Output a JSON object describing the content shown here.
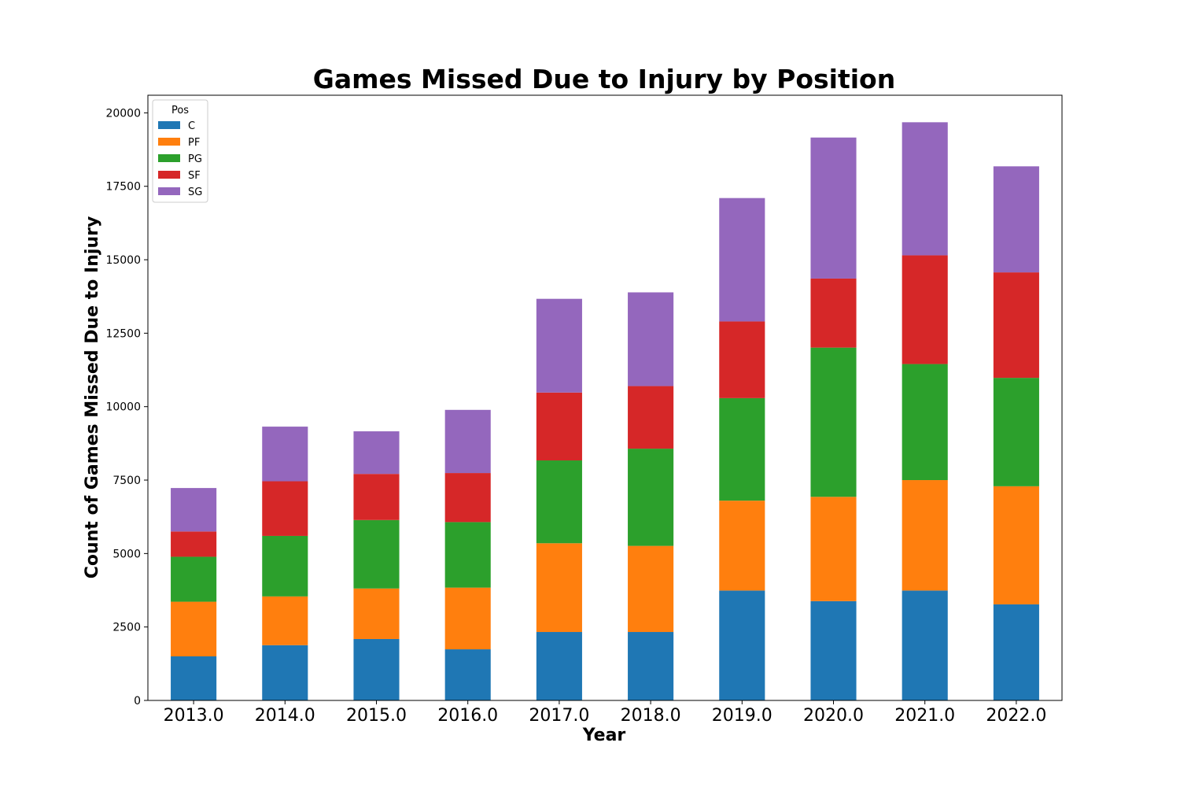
{
  "chart_data": {
    "type": "bar",
    "stacked": true,
    "title": "Games Missed Due to Injury by Position",
    "xlabel": "Year",
    "ylabel": "Count of Games Missed Due to Injury",
    "categories": [
      "2013.0",
      "2014.0",
      "2015.0",
      "2016.0",
      "2017.0",
      "2018.0",
      "2019.0",
      "2020.0",
      "2021.0",
      "2022.0"
    ],
    "ylim": [
      0,
      20600
    ],
    "yticks": [
      0,
      2500,
      5000,
      7500,
      10000,
      12500,
      15000,
      17500,
      20000
    ],
    "grid": false,
    "legend": {
      "title": "Pos",
      "placement": "top-left"
    },
    "series": [
      {
        "name": "C",
        "color": "#1f77b4",
        "values": [
          1500,
          1880,
          2090,
          1740,
          2330,
          2330,
          3740,
          3380,
          3740,
          3270
        ]
      },
      {
        "name": "PF",
        "color": "#ff7f0e",
        "values": [
          1860,
          1660,
          1720,
          2100,
          3020,
          2930,
          3060,
          3550,
          3760,
          4020
        ]
      },
      {
        "name": "PG",
        "color": "#2ca02c",
        "values": [
          1530,
          2060,
          2330,
          2230,
          2820,
          3310,
          3490,
          5080,
          3950,
          3690
        ]
      },
      {
        "name": "SF",
        "color": "#d62728",
        "values": [
          860,
          1860,
          1570,
          1670,
          2310,
          2130,
          2610,
          2350,
          3700,
          3590
        ]
      },
      {
        "name": "SG",
        "color": "#9467bd",
        "values": [
          1480,
          1860,
          1450,
          2150,
          3190,
          3190,
          4200,
          4800,
          4530,
          3610
        ]
      }
    ]
  }
}
